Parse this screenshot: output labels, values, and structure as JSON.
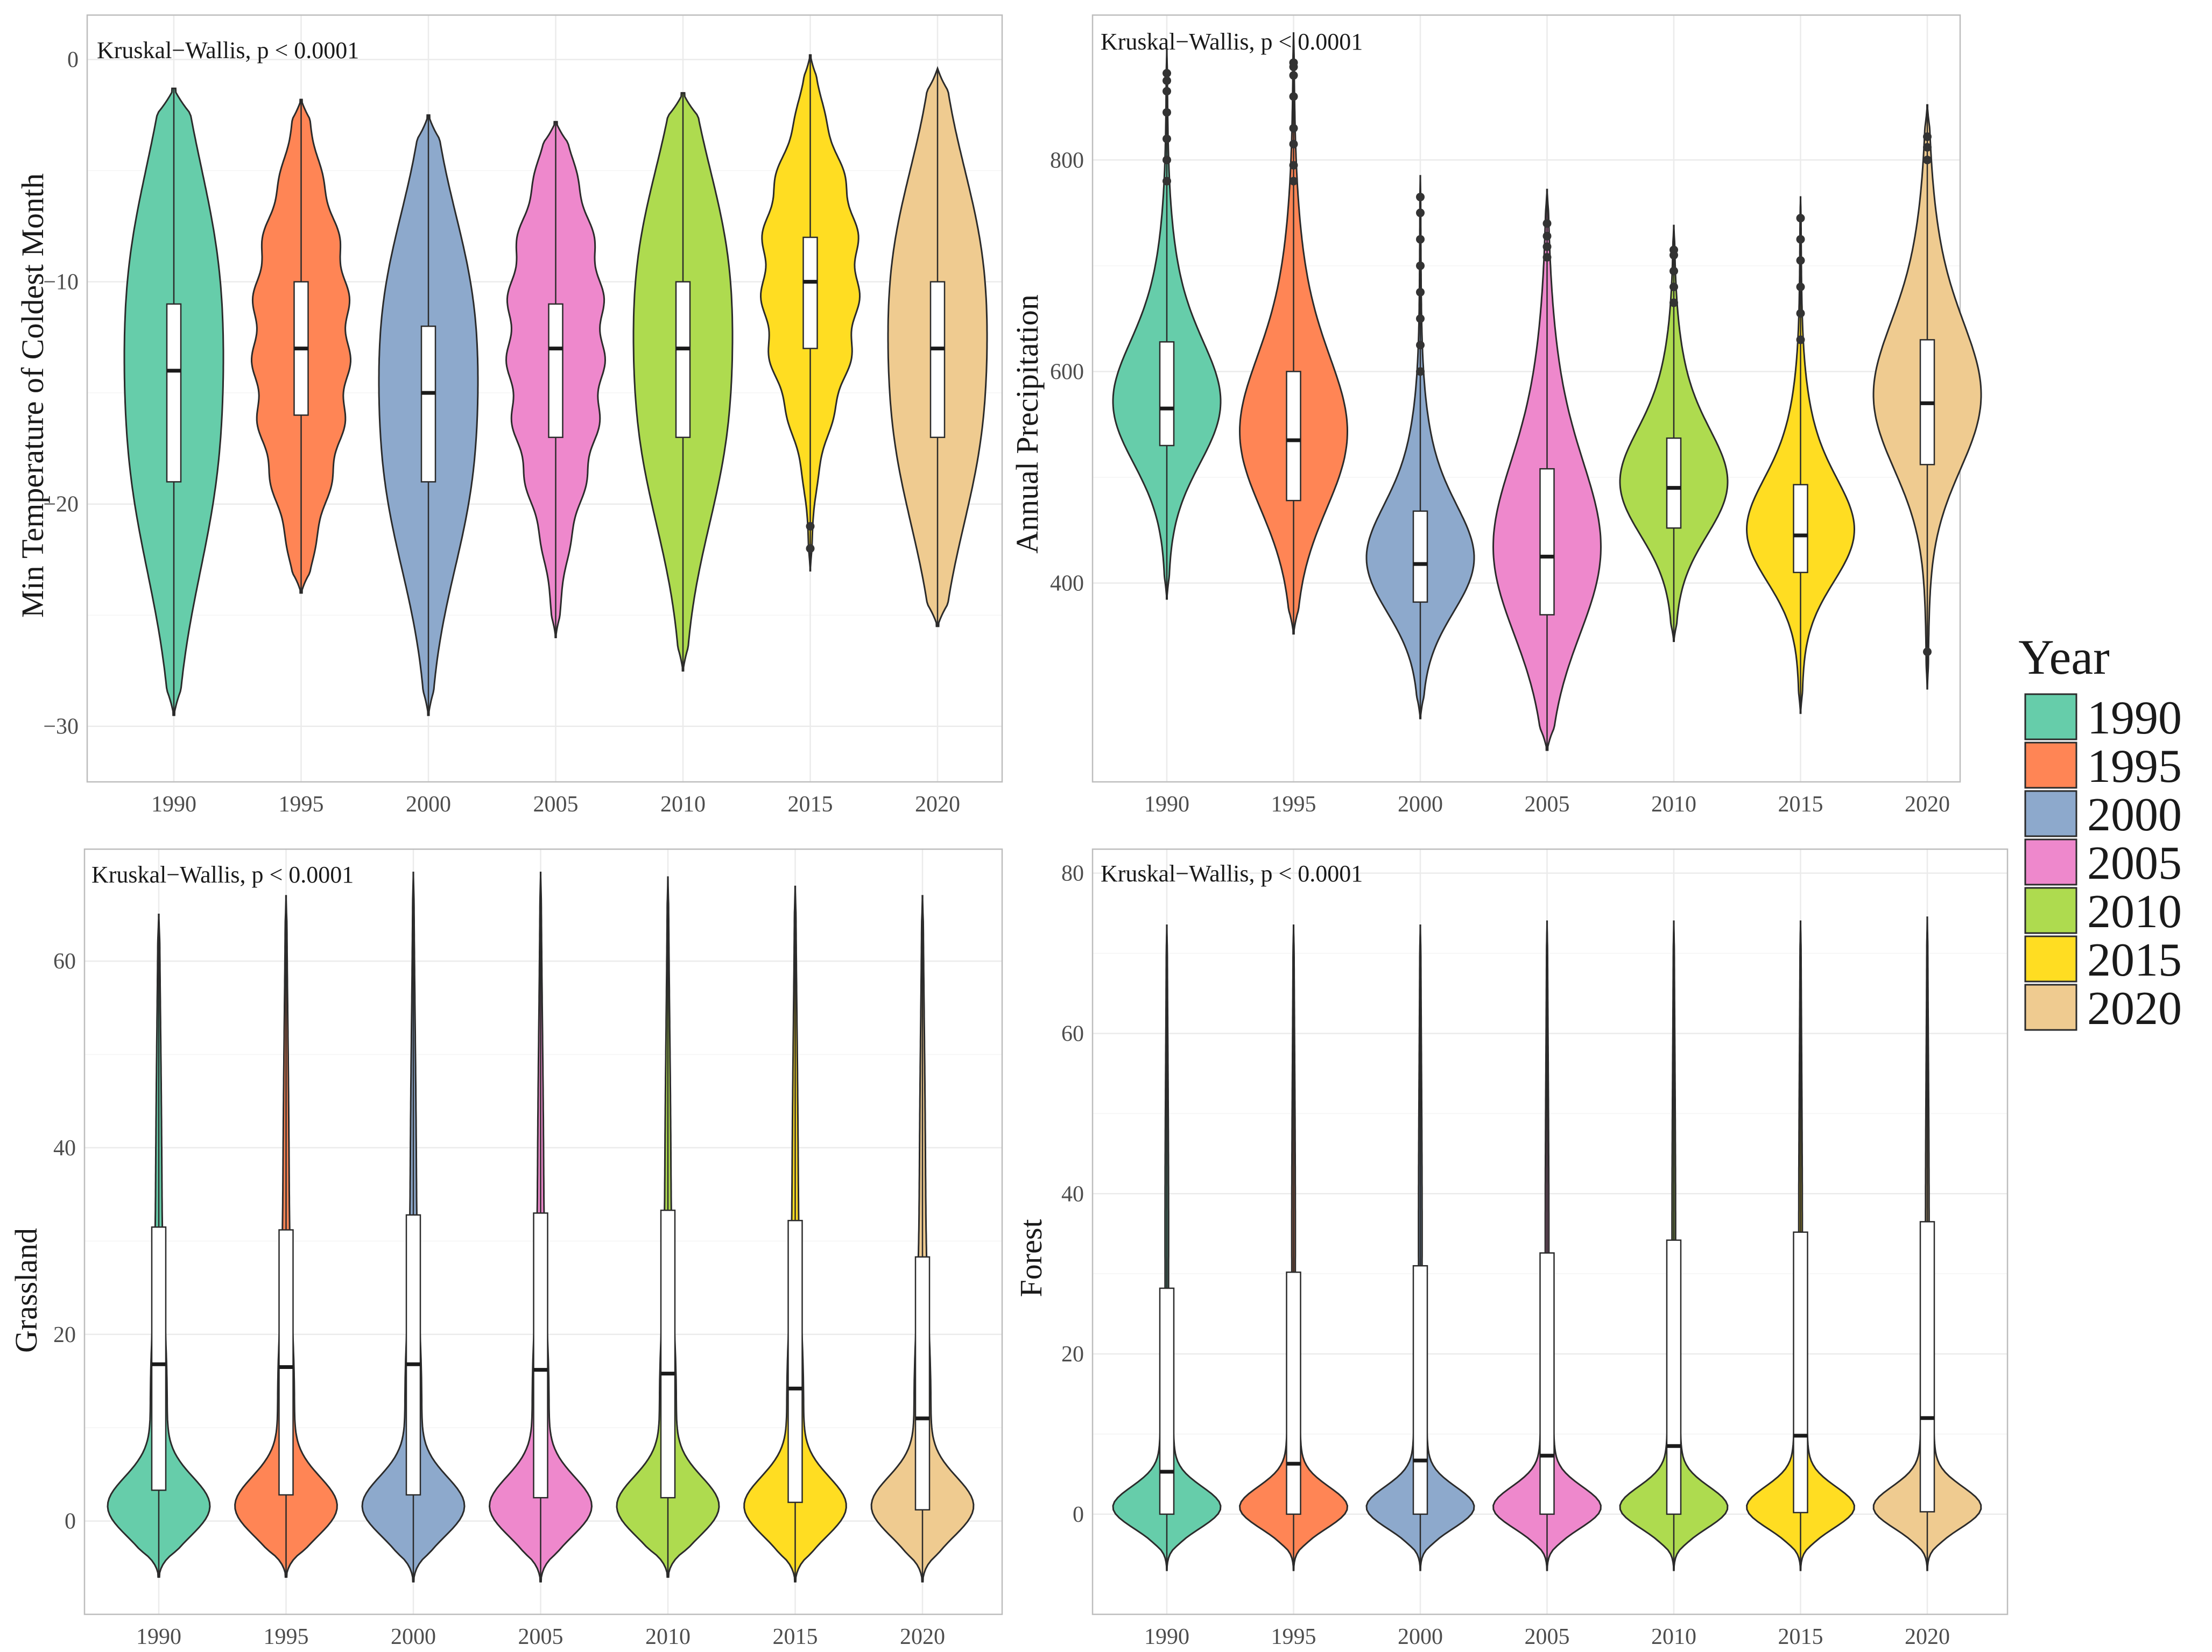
{
  "legend": {
    "title": "Year",
    "items": [
      {
        "label": "1990",
        "color": "#66CDAA"
      },
      {
        "label": "1995",
        "color": "#FF8555"
      },
      {
        "label": "2000",
        "color": "#8DA9CC"
      },
      {
        "label": "2005",
        "color": "#EE88CC"
      },
      {
        "label": "2010",
        "color": "#AEDB4F"
      },
      {
        "label": "2015",
        "color": "#FFDD22"
      },
      {
        "label": "2020",
        "color": "#EFCB90"
      }
    ]
  },
  "chart_data": [
    {
      "type": "violin",
      "title": "",
      "annotation": "Kruskal−Wallis, p < 0.0001",
      "xlabel": "",
      "ylabel": "Min Temperature of Coldest Month",
      "categories": [
        "1990",
        "1995",
        "2000",
        "2005",
        "2010",
        "2015",
        "2020"
      ],
      "ylim": [
        -32.5,
        2
      ],
      "reversed": true,
      "yticks": [
        0,
        -10,
        -20,
        -30
      ],
      "ytick_labels": [
        "0",
        "−10",
        "−20",
        "−30"
      ],
      "grid": true,
      "shape": "temp",
      "series": [
        {
          "name": "1990",
          "min": -29.5,
          "q1": -19,
          "median": -14,
          "q3": -11,
          "max": -1.3,
          "outliers": []
        },
        {
          "name": "1995",
          "min": -24,
          "q1": -16,
          "median": -13,
          "q3": -10,
          "max": -1.8,
          "outliers": []
        },
        {
          "name": "2000",
          "min": -29.5,
          "q1": -19,
          "median": -15,
          "q3": -12,
          "max": -2.5,
          "outliers": []
        },
        {
          "name": "2005",
          "min": -26,
          "q1": -17,
          "median": -13,
          "q3": -11,
          "max": -2.8,
          "outliers": []
        },
        {
          "name": "2010",
          "min": -27.5,
          "q1": -17,
          "median": -13,
          "q3": -10,
          "max": -1.5,
          "outliers": []
        },
        {
          "name": "2015",
          "min": -23,
          "q1": -13,
          "median": -10,
          "q3": -8,
          "max": 0.2,
          "outliers": [
            -21,
            -22
          ]
        },
        {
          "name": "2020",
          "min": -25.5,
          "q1": -17,
          "median": -13,
          "q3": -10,
          "max": -0.4,
          "outliers": []
        }
      ]
    },
    {
      "type": "violin",
      "title": "",
      "annotation": "Kruskal−Wallis, p < 0.0001",
      "xlabel": "",
      "ylabel": "Annual Precipitation",
      "categories": [
        "1990",
        "1995",
        "2000",
        "2005",
        "2010",
        "2015",
        "2020"
      ],
      "ylim": [
        212,
        937
      ],
      "reversed": false,
      "yticks": [
        400,
        600,
        800
      ],
      "ytick_labels": [
        "400",
        "600",
        "800"
      ],
      "grid": true,
      "shape": "precip",
      "series": [
        {
          "name": "1990",
          "min": 385,
          "q1": 530,
          "median": 565,
          "q3": 628,
          "max": 905,
          "outliers": [
            780,
            800,
            820,
            845,
            865,
            875,
            882
          ]
        },
        {
          "name": "1995",
          "min": 352,
          "q1": 478,
          "median": 535,
          "q3": 600,
          "max": 920,
          "outliers": [
            780,
            795,
            815,
            830,
            860,
            880,
            888,
            892
          ]
        },
        {
          "name": "2000",
          "min": 272,
          "q1": 382,
          "median": 418,
          "q3": 468,
          "max": 785,
          "outliers": [
            600,
            625,
            650,
            675,
            700,
            725,
            750,
            765
          ]
        },
        {
          "name": "2005",
          "min": 242,
          "q1": 370,
          "median": 425,
          "q3": 508,
          "max": 772,
          "outliers": [
            708,
            718,
            728,
            740
          ]
        },
        {
          "name": "2010",
          "min": 345,
          "q1": 452,
          "median": 490,
          "q3": 537,
          "max": 738,
          "outliers": [
            665,
            680,
            695,
            710,
            715
          ]
        },
        {
          "name": "2015",
          "min": 277,
          "q1": 410,
          "median": 445,
          "q3": 493,
          "max": 765,
          "outliers": [
            630,
            655,
            680,
            705,
            725,
            745
          ]
        },
        {
          "name": "2020",
          "min": 300,
          "q1": 512,
          "median": 570,
          "q3": 630,
          "max": 852,
          "outliers": [
            335,
            800,
            812,
            822
          ]
        }
      ]
    },
    {
      "type": "violin",
      "title": "",
      "annotation": "Kruskal−Wallis, p < 0.0001",
      "xlabel": "",
      "ylabel": "Grassland",
      "categories": [
        "1990",
        "1995",
        "2000",
        "2005",
        "2010",
        "2015",
        "2020"
      ],
      "ylim": [
        -10,
        72
      ],
      "reversed": false,
      "yticks": [
        0,
        20,
        40,
        60
      ],
      "ytick_labels": [
        "0",
        "20",
        "40",
        "60"
      ],
      "grid": true,
      "shape": "grass",
      "series": [
        {
          "name": "1990",
          "min": -6,
          "q1": 3.3,
          "median": 16.8,
          "q3": 31.5,
          "max": 65,
          "outliers": []
        },
        {
          "name": "1995",
          "min": -6,
          "q1": 2.8,
          "median": 16.5,
          "q3": 31.2,
          "max": 67,
          "outliers": []
        },
        {
          "name": "2000",
          "min": -6.5,
          "q1": 2.8,
          "median": 16.8,
          "q3": 32.8,
          "max": 69.5,
          "outliers": []
        },
        {
          "name": "2005",
          "min": -6.5,
          "q1": 2.5,
          "median": 16.2,
          "q3": 33,
          "max": 69.5,
          "outliers": []
        },
        {
          "name": "2010",
          "min": -6,
          "q1": 2.5,
          "median": 15.8,
          "q3": 33.3,
          "max": 69,
          "outliers": []
        },
        {
          "name": "2015",
          "min": -6.5,
          "q1": 2,
          "median": 14.2,
          "q3": 32.2,
          "max": 68,
          "outliers": []
        },
        {
          "name": "2020",
          "min": -6.5,
          "q1": 1.2,
          "median": 11,
          "q3": 28.3,
          "max": 67,
          "outliers": []
        }
      ]
    },
    {
      "type": "violin",
      "title": "",
      "annotation": "Kruskal−Wallis, p < 0.0001",
      "xlabel": "",
      "ylabel": "Forest",
      "categories": [
        "1990",
        "1995",
        "2000",
        "2005",
        "2010",
        "2015",
        "2020"
      ],
      "ylim": [
        -12.5,
        83
      ],
      "reversed": false,
      "yticks": [
        0,
        20,
        40,
        60,
        80
      ],
      "ytick_labels": [
        "0",
        "20",
        "40",
        "60",
        "80"
      ],
      "grid": true,
      "shape": "forest",
      "series": [
        {
          "name": "1990",
          "min": -7,
          "q1": 0,
          "median": 5.3,
          "q3": 28.2,
          "max": 73.5,
          "outliers": []
        },
        {
          "name": "1995",
          "min": -7,
          "q1": 0,
          "median": 6.3,
          "q3": 30.2,
          "max": 73.5,
          "outliers": []
        },
        {
          "name": "2000",
          "min": -7,
          "q1": 0,
          "median": 6.7,
          "q3": 31,
          "max": 73.5,
          "outliers": []
        },
        {
          "name": "2005",
          "min": -7,
          "q1": 0,
          "median": 7.3,
          "q3": 32.6,
          "max": 74,
          "outliers": []
        },
        {
          "name": "2010",
          "min": -7,
          "q1": 0,
          "median": 8.5,
          "q3": 34.2,
          "max": 74,
          "outliers": []
        },
        {
          "name": "2015",
          "min": -7,
          "q1": 0.2,
          "median": 9.8,
          "q3": 35.2,
          "max": 74,
          "outliers": []
        },
        {
          "name": "2020",
          "min": -7,
          "q1": 0.3,
          "median": 12,
          "q3": 36.5,
          "max": 74.5,
          "outliers": []
        }
      ]
    }
  ]
}
